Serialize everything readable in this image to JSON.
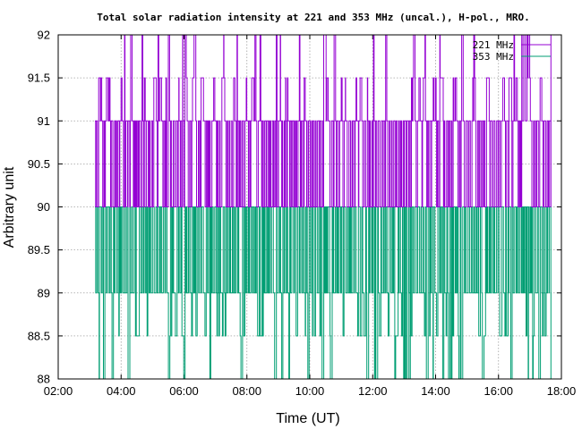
{
  "chart_data": {
    "type": "line",
    "title": "Total solar radiation intensity at 221 and 353 MHz (uncal.), H-pol., MRO.",
    "xlabel": "Time (UT)",
    "ylabel": "Arbitrary unit",
    "xlim": [
      "02:00",
      "18:00"
    ],
    "ylim": [
      88,
      92
    ],
    "xticks": [
      "02:00",
      "04:00",
      "06:00",
      "08:00",
      "10:00",
      "12:00",
      "14:00",
      "16:00",
      "18:00"
    ],
    "yticks": [
      "88",
      "88.5",
      "89",
      "89.5",
      "90",
      "90.5",
      "91",
      "91.5",
      "92"
    ],
    "grid": true,
    "legend_position": "top-right",
    "series": [
      {
        "name": "221 MHz",
        "color": "#9400d3",
        "time_range": [
          "03:10",
          "17:40"
        ],
        "dominant_levels": [
          90,
          91
        ],
        "occasional_levels": [
          91.5,
          92
        ],
        "style": "step"
      },
      {
        "name": "353 MHz",
        "color": "#009e73",
        "time_range": [
          "03:10",
          "17:40"
        ],
        "dominant_levels": [
          89,
          90
        ],
        "occasional_levels": [
          88.5,
          88
        ],
        "style": "step"
      }
    ]
  }
}
